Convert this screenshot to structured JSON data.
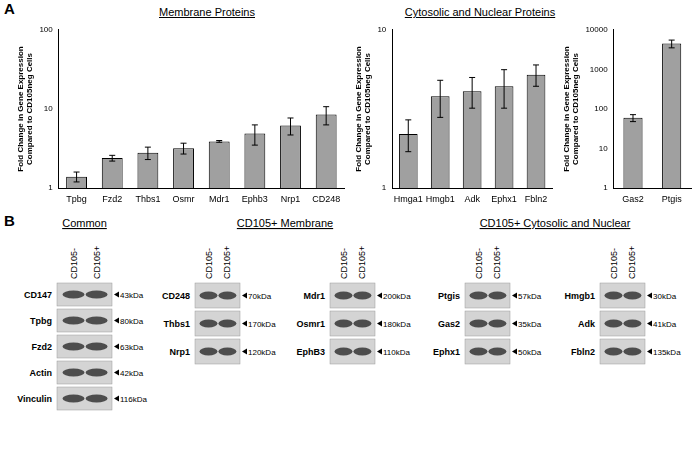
{
  "panel_labels": [
    "A",
    "B"
  ],
  "chart_data": [
    {
      "type": "bar",
      "title": "Membrane Proteins",
      "y_label": [
        "Fold Change in Gene Expression",
        "Compared to CD105neg Cells"
      ],
      "categories": [
        "Tpbg",
        "Fzd2",
        "Thbs1",
        "Osmr",
        "Mdr1",
        "Ephb3",
        "Nrp1",
        "CD248"
      ],
      "values": [
        1.4,
        2.4,
        2.8,
        3.2,
        3.9,
        4.9,
        6.2,
        8.5
      ],
      "errors": [
        0.2,
        0.2,
        0.5,
        0.5,
        0.1,
        1.4,
        1.5,
        2.2
      ],
      "color": "#a0a0a0",
      "log": "y",
      "ylim": [
        1,
        100
      ],
      "yticks": [
        1,
        10,
        100
      ],
      "grid": false
    },
    {
      "type": "bar",
      "title": "Cytosolic and Nuclear Proteins",
      "y_label": [
        "Fold Change in Gene Expression",
        "Compared to CD105neg Cells"
      ],
      "categories": [
        "Hmga1",
        "Hmgb1",
        "Adk",
        "Ephx1",
        "Fbln2"
      ],
      "values": [
        2.2,
        3.8,
        4.1,
        4.4,
        5.2
      ],
      "errors": [
        0.5,
        1.0,
        0.9,
        1.2,
        0.8
      ],
      "color": "#a0a0a0",
      "log": "y",
      "ylim": [
        1,
        10
      ],
      "yticks": [
        1,
        10
      ],
      "grid": false
    },
    {
      "type": "bar",
      "y_label": [
        "Fold Change in Gene Expression",
        "Compared to CD105neg Cells"
      ],
      "categories": [
        "Gas2",
        "Ptgis"
      ],
      "values": [
        60,
        4500
      ],
      "errors": [
        12,
        1000
      ],
      "color": "#a0a0a0",
      "log": "y",
      "ylim": [
        1,
        10000
      ],
      "yticks": [
        1,
        10,
        100,
        1000,
        10000
      ],
      "grid": false
    }
  ],
  "blots": {
    "lanes": [
      "CD105-",
      "CD105+"
    ],
    "groups": [
      {
        "title": "Common",
        "panels": [
          [
            {
              "protein": "CD147",
              "mw": "43kDa"
            },
            {
              "protein": "Tpbg",
              "mw": "80kDa"
            },
            {
              "protein": "Fzd2",
              "mw": "63kDa"
            },
            {
              "protein": "Actin",
              "mw": "42kDa"
            },
            {
              "protein": "Vinculin",
              "mw": "116kDa"
            }
          ]
        ]
      },
      {
        "title": "CD105+ Membrane",
        "panels": [
          [
            {
              "protein": "CD248",
              "mw": "70kDa"
            },
            {
              "protein": "Thbs1",
              "mw": "170kDa"
            },
            {
              "protein": "Nrp1",
              "mw": "120kDa"
            }
          ],
          [
            {
              "protein": "Mdr1",
              "mw": "200kDa"
            },
            {
              "protein": "Osmr1",
              "mw": "180kDa"
            },
            {
              "protein": "EphB3",
              "mw": "110kDa"
            }
          ]
        ]
      },
      {
        "title": "CD105+ Cytosolic and Nuclear",
        "panels": [
          [
            {
              "protein": "Ptgis",
              "mw": "57kDa"
            },
            {
              "protein": "Gas2",
              "mw": "35kDa"
            },
            {
              "protein": "Ephx1",
              "mw": "50kDa"
            }
          ],
          [
            {
              "protein": "Hmgb1",
              "mw": "30kDa"
            },
            {
              "protein": "Adk",
              "mw": "41kDa"
            },
            {
              "protein": "Fbln2",
              "mw": "135kDa"
            }
          ]
        ]
      }
    ]
  }
}
